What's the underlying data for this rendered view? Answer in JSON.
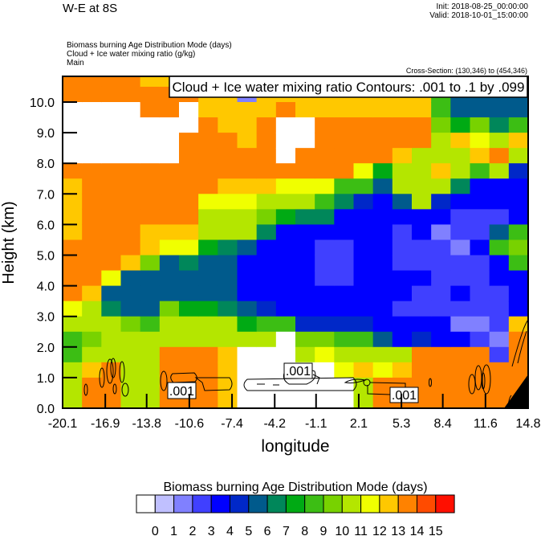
{
  "header": {
    "title": "W-E at 8S",
    "init": "Init: 2018-08-25_00:00:00",
    "valid": "Valid: 2018-10-01_15:00:00",
    "fields": [
      "Biomass burning Age Distribution Mode   (days)",
      "Cloud + Ice water mixing ratio   (g/kg)",
      "Main"
    ],
    "cross_section": "Cross-Section: (130,346) to (454,346)"
  },
  "chart_data": {
    "type": "heatmap",
    "title": "Cloud + Ice water mixing ratio Contours: .001 to .1 by .099",
    "xlabel": "longitude",
    "ylabel": "Height (km)",
    "xlim": [
      -20.1,
      14.8
    ],
    "ylim": [
      0,
      10.84
    ],
    "x_tick_labels": [
      "-20.1",
      "-16.9",
      "-13.8",
      "-10.6",
      "-7.4",
      "-4.2",
      "-1.1",
      "2.1",
      "5.3",
      "8.4",
      "11.6",
      "14.8"
    ],
    "y_tick_labels": [
      "0.0",
      "1.0",
      "2.0",
      "3.0",
      "4.0",
      "5.0",
      "6.0",
      "7.0",
      "8.0",
      "9.0",
      "10.0"
    ],
    "y_row_edges_km": [
      10.84,
      10.5,
      10,
      9.5,
      9,
      8.5,
      8,
      7.5,
      7,
      6.5,
      6,
      5.5,
      5,
      4.5,
      4,
      3.5,
      3,
      2.5,
      2,
      1.5,
      1,
      0.5,
      0
    ],
    "z_days_by_column_top_to_bottom": [
      [
        13,
        13,
        -1,
        -1,
        -1,
        -1,
        13,
        12,
        12,
        12,
        12,
        13,
        13,
        13,
        13,
        11,
        10,
        8,
        8,
        10,
        10,
        10
      ],
      [
        13,
        13,
        -1,
        -1,
        -1,
        -1,
        13,
        13,
        13,
        13,
        13,
        13,
        13,
        13,
        12,
        10,
        10,
        9,
        10,
        12,
        13,
        13
      ],
      [
        13,
        13,
        -1,
        -1,
        -1,
        -1,
        13,
        13,
        13,
        13,
        13,
        13,
        13,
        11,
        5,
        6,
        10,
        10,
        10,
        13,
        13,
        13
      ],
      [
        13,
        13,
        -1,
        -1,
        -1,
        -1,
        13,
        13,
        13,
        13,
        13,
        13,
        12,
        5,
        5,
        5,
        9,
        10,
        10,
        10,
        10,
        10
      ],
      [
        12,
        13,
        13,
        -1,
        -1,
        -1,
        13,
        13,
        13,
        13,
        12,
        12,
        9,
        5,
        5,
        5,
        8,
        10,
        10,
        10,
        10,
        10
      ],
      [
        12,
        13,
        13,
        -1,
        -1,
        -1,
        13,
        13,
        13,
        13,
        12,
        11,
        5,
        5,
        5,
        9,
        10,
        10,
        13,
        13,
        13,
        13
      ],
      [
        13,
        13,
        -1,
        -1,
        13,
        13,
        13,
        13,
        13,
        13,
        12,
        11,
        6,
        5,
        5,
        7,
        10,
        10,
        13,
        13,
        13,
        13
      ],
      [
        13,
        12,
        12,
        13,
        13,
        13,
        13,
        13,
        11,
        10,
        10,
        7,
        5,
        5,
        5,
        7,
        10,
        10,
        13,
        13,
        13,
        13
      ],
      [
        13,
        12,
        12,
        12,
        13,
        13,
        13,
        12,
        11,
        10,
        10,
        6,
        5,
        5,
        5,
        6,
        10,
        10,
        12,
        12,
        12,
        12
      ],
      [
        13,
        1,
        12,
        12,
        12,
        13,
        13,
        12,
        11,
        10,
        10,
        5,
        3,
        3,
        3,
        5,
        7,
        10,
        -1,
        -1,
        -1,
        -1
      ],
      [
        13,
        12,
        12,
        13,
        13,
        13,
        13,
        12,
        10,
        9,
        6,
        3,
        3,
        3,
        3,
        4,
        8,
        10,
        -1,
        -1,
        -1,
        -1
      ],
      [
        13,
        12,
        13,
        -1,
        -1,
        -1,
        13,
        11,
        10,
        7,
        3,
        3,
        3,
        3,
        3,
        3,
        8,
        -1,
        -1,
        -1,
        -1,
        -1
      ],
      [
        12,
        12,
        12,
        -1,
        -1,
        13,
        13,
        11,
        10,
        6,
        3,
        3,
        3,
        3,
        3,
        3,
        4,
        9,
        10,
        -1,
        -1,
        -1
      ],
      [
        12,
        12,
        12,
        13,
        13,
        13,
        13,
        11,
        8,
        6,
        3,
        2,
        2,
        2,
        3,
        3,
        4,
        9,
        11,
        -1,
        -1,
        -1
      ],
      [
        12,
        12,
        12,
        13,
        13,
        13,
        13,
        8,
        6,
        3,
        3,
        2,
        2,
        2,
        3,
        3,
        4,
        8,
        10,
        11,
        -1,
        -1
      ],
      [
        12,
        12,
        12,
        13,
        13,
        13,
        11,
        8,
        4,
        3,
        3,
        3,
        3,
        3,
        3,
        3,
        4,
        8,
        10,
        12,
        10,
        10
      ],
      [
        12,
        12,
        12,
        13,
        13,
        13,
        7,
        5,
        3,
        3,
        3,
        3,
        3,
        3,
        3,
        3,
        3,
        5,
        10,
        11,
        13,
        13
      ],
      [
        12,
        12,
        12,
        13,
        13,
        12,
        10,
        10,
        5,
        3,
        2,
        2,
        2,
        3,
        3,
        2,
        3,
        3,
        10,
        12,
        13,
        13
      ],
      [
        12,
        12,
        12,
        13,
        13,
        10,
        10,
        10,
        10,
        3,
        3,
        2,
        2,
        3,
        2,
        2,
        3,
        4,
        13,
        13,
        13,
        13
      ],
      [
        8,
        8,
        8,
        9,
        10,
        10,
        12,
        10,
        4,
        3,
        1,
        2,
        2,
        2,
        2,
        2,
        3,
        3,
        13,
        13,
        13,
        13
      ],
      [
        5,
        5,
        5,
        7,
        12,
        10,
        10,
        6,
        3,
        2,
        2,
        1,
        2,
        2,
        3,
        2,
        1,
        3,
        13,
        13,
        13,
        13
      ],
      [
        5,
        5,
        5,
        9,
        11,
        12,
        8,
        3,
        3,
        2,
        2,
        3,
        2,
        2,
        2,
        2,
        1,
        2,
        13,
        13,
        13,
        13
      ],
      [
        5,
        5,
        5,
        6,
        10,
        13,
        10,
        3,
        3,
        2,
        5,
        8,
        3,
        3,
        2,
        2,
        2,
        1,
        2,
        13,
        13,
        13
      ],
      [
        5,
        5,
        5,
        8,
        12,
        10,
        4,
        3,
        3,
        3,
        8,
        9,
        8,
        3,
        3,
        3,
        12,
        13,
        13,
        13,
        13,
        13
      ]
    ],
    "contour_labels": [
      ".001",
      ".001",
      ".001"
    ],
    "colorbar": {
      "title": "Biomass burning Age Distribution Mode  (days)",
      "labels": [
        "0",
        "1",
        "2",
        "3",
        "4",
        "5",
        "6",
        "7",
        "8",
        "9",
        "10",
        "11",
        "12",
        "13",
        "14",
        "15"
      ],
      "colors": [
        "#ffffff",
        "#c0c0ff",
        "#8080ff",
        "#4040ff",
        "#0000ff",
        "#0028c8",
        "#005a8c",
        "#00875a",
        "#00aa14",
        "#3cbe14",
        "#78d200",
        "#b4e600",
        "#f0ff00",
        "#ffc800",
        "#ff8200",
        "#ff4b00",
        "#ff0f00"
      ]
    }
  }
}
